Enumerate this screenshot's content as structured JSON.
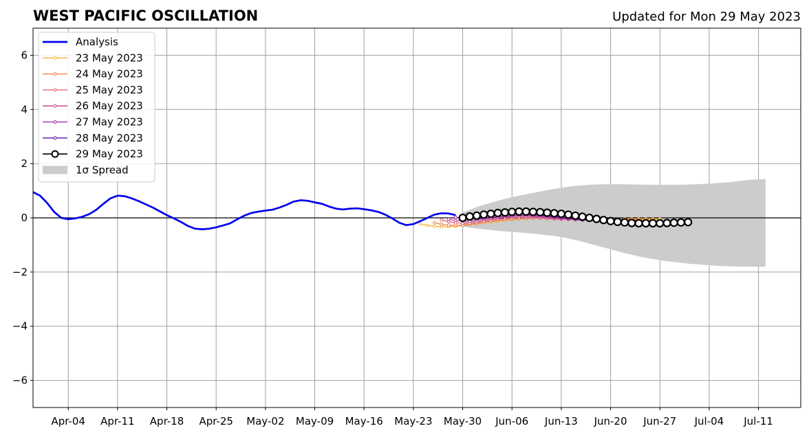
{
  "chart_data": {
    "type": "line",
    "title": "WEST PACIFIC OSCILLATION",
    "subtitle": "Updated for Mon 29 May 2023",
    "xlabel": "",
    "ylabel": "",
    "x_ticks": [
      "Apr-04",
      "Apr-11",
      "Apr-18",
      "Apr-25",
      "May-02",
      "May-09",
      "May-16",
      "May-23",
      "May-30",
      "Jun-06",
      "Jun-13",
      "Jun-20",
      "Jun-27",
      "Jul-04",
      "Jul-11"
    ],
    "y_ticks": [
      "6",
      "4",
      "2",
      "0",
      "−2",
      "−4",
      "−6"
    ],
    "xlim": [
      "2023-03-30",
      "2023-07-17"
    ],
    "ylim": [
      -7,
      7
    ],
    "grid": true,
    "zero_line": true,
    "legend_position": "top-left",
    "analysis": {
      "name": "Analysis",
      "color": "#0000ee",
      "start": "2023-03-30",
      "values": [
        0.95,
        0.82,
        0.55,
        0.22,
        0.0,
        -0.05,
        -0.02,
        0.04,
        0.14,
        0.3,
        0.52,
        0.72,
        0.82,
        0.8,
        0.72,
        0.62,
        0.5,
        0.38,
        0.24,
        0.1,
        -0.02,
        -0.15,
        -0.3,
        -0.4,
        -0.42,
        -0.4,
        -0.35,
        -0.28,
        -0.2,
        -0.05,
        0.08,
        0.18,
        0.23,
        0.27,
        0.3,
        0.38,
        0.48,
        0.6,
        0.65,
        0.63,
        0.57,
        0.52,
        0.42,
        0.34,
        0.31,
        0.34,
        0.35,
        0.32,
        0.28,
        0.22,
        0.12,
        -0.02,
        -0.18,
        -0.27,
        -0.23,
        -0.12,
        0.0,
        0.12,
        0.17,
        0.16,
        0.1
      ]
    },
    "forecasts": [
      {
        "name": "23 May 2023",
        "color": "#f8b02a",
        "start": "2023-05-24",
        "values": [
          -0.22,
          -0.28,
          -0.31,
          -0.33,
          -0.33,
          -0.31,
          -0.28,
          -0.25,
          -0.22,
          -0.18,
          -0.15,
          -0.12,
          -0.09,
          -0.06,
          -0.04,
          -0.02,
          -0.01,
          0.0,
          0.0,
          -0.01,
          -0.02,
          -0.03,
          -0.04,
          -0.05,
          -0.05,
          -0.05,
          -0.05,
          -0.05,
          -0.05,
          -0.04,
          -0.04,
          -0.04,
          -0.04,
          -0.04,
          -0.04
        ]
      },
      {
        "name": "24 May 2023",
        "color": "#ef7d45",
        "start": "2023-05-26",
        "values": [
          -0.18,
          -0.24,
          -0.27,
          -0.28,
          -0.27,
          -0.24,
          -0.21,
          -0.17,
          -0.13,
          -0.1,
          -0.07,
          -0.05,
          -0.03,
          -0.02,
          -0.01,
          -0.01,
          -0.02,
          -0.03,
          -0.04,
          -0.05,
          -0.05,
          -0.04,
          -0.03,
          -0.03,
          -0.03,
          -0.04,
          -0.05,
          -0.06,
          -0.07,
          -0.07,
          -0.07,
          -0.07
        ]
      },
      {
        "name": "25 May 2023",
        "color": "#e05a6f",
        "start": "2023-05-27",
        "values": [
          -0.08,
          -0.14,
          -0.18,
          -0.2,
          -0.19,
          -0.16,
          -0.12,
          -0.08,
          -0.05,
          -0.02,
          0.0,
          0.01,
          0.01,
          0.0,
          -0.01,
          -0.03,
          -0.04,
          -0.05,
          -0.06,
          -0.07,
          -0.08,
          -0.08,
          -0.08,
          -0.09,
          -0.1,
          -0.1,
          -0.1,
          -0.11,
          -0.11
        ]
      },
      {
        "name": "26 May 2023",
        "color": "#c43d8d",
        "start": "2023-05-28",
        "values": [
          -0.05,
          -0.1,
          -0.12,
          -0.12,
          -0.1,
          -0.06,
          -0.03,
          0.0,
          0.03,
          0.05,
          0.06,
          0.06,
          0.05,
          0.03,
          0.01,
          -0.01,
          -0.03,
          -0.05,
          -0.07,
          -0.08,
          -0.09,
          -0.1,
          -0.1,
          -0.11,
          -0.11,
          -0.12,
          -0.12,
          -0.12
        ]
      },
      {
        "name": "27 May 2023",
        "color": "#9a1fa8",
        "start": "2023-05-29",
        "values": [
          0.02,
          -0.02,
          -0.04,
          -0.04,
          -0.02,
          0.01,
          0.04,
          0.07,
          0.09,
          0.1,
          0.1,
          0.09,
          0.07,
          0.05,
          0.02,
          0.0,
          -0.02,
          -0.04,
          -0.06,
          -0.07,
          -0.08,
          -0.09,
          -0.1,
          -0.1,
          -0.11,
          -0.11,
          -0.11
        ]
      },
      {
        "name": "28 May 2023",
        "color": "#5d0fa0",
        "start": "2023-05-30",
        "values": [
          0.05,
          0.06,
          0.08,
          0.1,
          0.12,
          0.14,
          0.15,
          0.16,
          0.16,
          0.15,
          0.13,
          0.11,
          0.08,
          0.05,
          0.02,
          -0.01,
          -0.04,
          -0.07,
          -0.09,
          -0.1,
          -0.11,
          -0.12,
          -0.12,
          -0.12,
          -0.12,
          -0.12
        ]
      },
      {
        "name": "29 May 2023",
        "color": "#000000",
        "start": "2023-05-30",
        "values": [
          0.0,
          0.05,
          0.08,
          0.12,
          0.15,
          0.18,
          0.2,
          0.22,
          0.23,
          0.23,
          0.22,
          0.21,
          0.19,
          0.17,
          0.15,
          0.12,
          0.08,
          0.04,
          0.0,
          -0.04,
          -0.08,
          -0.12,
          -0.15,
          -0.17,
          -0.19,
          -0.2,
          -0.2,
          -0.2,
          -0.2,
          -0.19,
          -0.18,
          -0.17,
          -0.16
        ]
      }
    ],
    "spread": {
      "name": "1σ Spread",
      "color": "#cccccc",
      "start": "2023-05-30",
      "upper": [
        0.2,
        0.3,
        0.4,
        0.48,
        0.56,
        0.63,
        0.7,
        0.76,
        0.82,
        0.87,
        0.92,
        0.97,
        1.02,
        1.07,
        1.11,
        1.15,
        1.18,
        1.2,
        1.22,
        1.23,
        1.24,
        1.24,
        1.24,
        1.24,
        1.23,
        1.23,
        1.22,
        1.22,
        1.22,
        1.22,
        1.22,
        1.22,
        1.23,
        1.24,
        1.25,
        1.26,
        1.28,
        1.3,
        1.32,
        1.35,
        1.38,
        1.41,
        1.42,
        1.43
      ],
      "lower": [
        -0.32,
        -0.36,
        -0.39,
        -0.42,
        -0.45,
        -0.48,
        -0.5,
        -0.52,
        -0.54,
        -0.56,
        -0.58,
        -0.61,
        -0.64,
        -0.67,
        -0.71,
        -0.76,
        -0.82,
        -0.88,
        -0.95,
        -1.02,
        -1.09,
        -1.16,
        -1.23,
        -1.3,
        -1.36,
        -1.42,
        -1.47,
        -1.52,
        -1.56,
        -1.6,
        -1.63,
        -1.66,
        -1.69,
        -1.71,
        -1.73,
        -1.75,
        -1.77,
        -1.78,
        -1.79,
        -1.8,
        -1.8,
        -1.8,
        -1.8,
        -1.8
      ]
    }
  }
}
